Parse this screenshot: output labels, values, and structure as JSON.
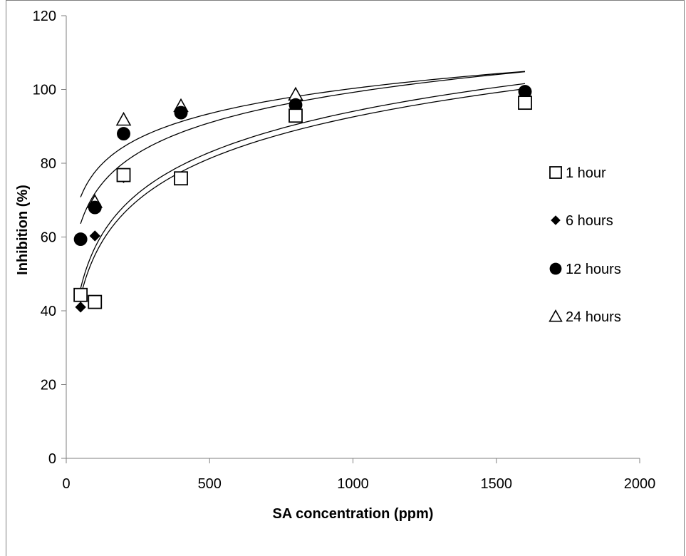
{
  "chart_data": {
    "type": "scatter",
    "title": "",
    "xlabel": "SA concentration (ppm)",
    "ylabel": "Inhibition (%)",
    "xlim": [
      0,
      2000
    ],
    "ylim": [
      0,
      120
    ],
    "xticks": [
      "0",
      "500",
      "1000",
      "1500",
      "2000"
    ],
    "yticks": [
      "0",
      "20",
      "40",
      "60",
      "80",
      "100",
      "120"
    ],
    "grid": false,
    "legend_position": "right",
    "trendline": "logarithmic",
    "series": [
      {
        "name": "1 hour",
        "marker": "open-square",
        "x": [
          50,
          100,
          200,
          400,
          800,
          1600
        ],
        "y": [
          44.3,
          42.4,
          76.8,
          75.9,
          92.9,
          96.4
        ],
        "trend": [
          50,
          1600,
          43.8,
          100.2
        ]
      },
      {
        "name": "6 hours",
        "marker": "filled-diamond",
        "x": [
          50,
          100,
          200,
          400,
          800,
          1600
        ],
        "y": [
          41.0,
          60.3,
          76.1,
          76.3,
          92.5,
          99.4
        ],
        "trend": [
          50,
          1600,
          46.0,
          101.6
        ]
      },
      {
        "name": "12 hours",
        "marker": "filled-circle",
        "x": [
          50,
          100,
          200,
          400,
          800,
          1600
        ],
        "y": [
          59.4,
          68.0,
          88.0,
          93.7,
          95.8,
          99.4
        ],
        "trend": [
          50,
          1600,
          63.6,
          104.8
        ]
      },
      {
        "name": "24 hours",
        "marker": "open-triangle",
        "x": [
          50,
          100,
          200,
          400,
          800,
          1600
        ],
        "y": [
          null,
          69.5,
          91.8,
          95.5,
          98.6,
          null
        ],
        "trend": [
          50,
          1600,
          70.8,
          104.9
        ]
      }
    ]
  }
}
